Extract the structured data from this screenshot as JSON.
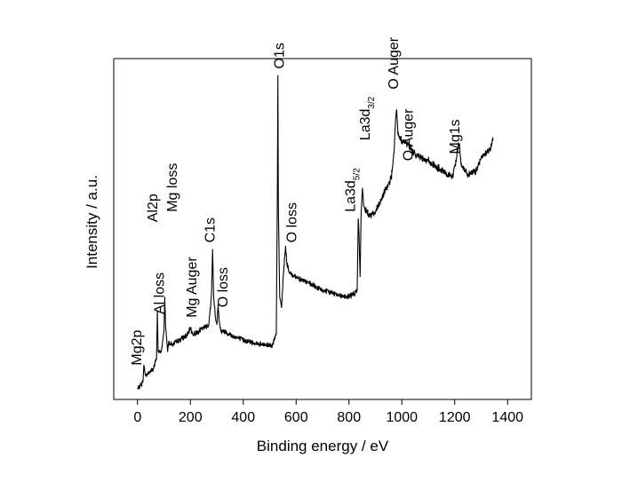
{
  "chart_data": {
    "type": "line",
    "title": "",
    "xlabel": "Binding energy / eV",
    "ylabel": "Intensity / a.u.",
    "xlim": [
      -90,
      1490
    ],
    "ylim": [
      0,
      1
    ],
    "x_ticks": [
      0,
      200,
      400,
      600,
      800,
      1000,
      1200,
      1400
    ],
    "x_tick_labels": [
      "0",
      "200",
      "400",
      "600",
      "800",
      "1000",
      "1200",
      "1400"
    ],
    "y_ticks_labelled": false,
    "grid": false,
    "legend": "none",
    "line_color": "#000000",
    "series": [
      {
        "x": [
          0,
          10,
          20,
          24,
          30,
          45,
          60,
          72,
          75,
          78,
          90,
          100,
          103,
          106,
          110,
          114,
          118,
          130,
          150,
          170,
          190,
          200,
          210,
          230,
          250,
          270,
          280,
          284,
          288,
          295,
          300,
          305,
          308,
          315,
          330,
          350,
          380,
          420,
          470,
          510,
          525,
          529,
          531,
          533,
          538,
          545,
          552,
          560,
          565,
          575,
          600,
          650,
          700,
          750,
          790,
          820,
          831,
          835,
          838,
          842,
          846,
          851,
          855,
          860,
          880,
          900,
          920,
          940,
          960,
          970,
          975,
          980,
          985,
          990,
          1000,
          1020,
          1050,
          1100,
          1150,
          1190,
          1205,
          1212,
          1218,
          1223,
          1230,
          1250,
          1280,
          1300,
          1330,
          1345
        ],
        "y": [
          0.03,
          0.04,
          0.05,
          0.1,
          0.07,
          0.08,
          0.09,
          0.12,
          0.26,
          0.14,
          0.14,
          0.2,
          0.3,
          0.22,
          0.18,
          0.14,
          0.17,
          0.16,
          0.17,
          0.18,
          0.19,
          0.21,
          0.19,
          0.2,
          0.21,
          0.22,
          0.31,
          0.44,
          0.3,
          0.24,
          0.22,
          0.28,
          0.24,
          0.2,
          0.2,
          0.19,
          0.18,
          0.17,
          0.16,
          0.16,
          0.19,
          0.6,
          0.95,
          0.55,
          0.3,
          0.27,
          0.37,
          0.45,
          0.4,
          0.37,
          0.36,
          0.34,
          0.32,
          0.31,
          0.3,
          0.31,
          0.32,
          0.53,
          0.48,
          0.36,
          0.55,
          0.62,
          0.57,
          0.56,
          0.54,
          0.55,
          0.58,
          0.62,
          0.65,
          0.72,
          0.8,
          0.85,
          0.78,
          0.77,
          0.76,
          0.75,
          0.72,
          0.7,
          0.67,
          0.65,
          0.7,
          0.74,
          0.75,
          0.7,
          0.68,
          0.66,
          0.67,
          0.71,
          0.73,
          0.76
        ]
      }
    ],
    "annotations": [
      {
        "text": "Mg2p",
        "x": 15,
        "y": 0.1
      },
      {
        "text": "Al loss",
        "x": 100,
        "y": 0.25
      },
      {
        "text": "Al2p",
        "x": 75,
        "y": 0.52
      },
      {
        "text": "Mg loss",
        "x": 148,
        "y": 0.55
      },
      {
        "text": "Mg Auger",
        "x": 222,
        "y": 0.24
      },
      {
        "text": "C1s",
        "x": 292,
        "y": 0.46
      },
      {
        "text": "O loss",
        "x": 340,
        "y": 0.27
      },
      {
        "text": "O1s",
        "x": 553,
        "y": 0.97
      },
      {
        "text": "O loss",
        "x": 600,
        "y": 0.46
      },
      {
        "text": "La3d",
        "sub": "5/2",
        "x": 822,
        "y": 0.55
      },
      {
        "text": "La3d",
        "sub": "3/2",
        "x": 878,
        "y": 0.76
      },
      {
        "text": "O Auger",
        "x": 985,
        "y": 0.91
      },
      {
        "text": "O Auger",
        "x": 1042,
        "y": 0.7
      },
      {
        "text": "Mg1s",
        "x": 1218,
        "y": 0.72
      }
    ]
  }
}
